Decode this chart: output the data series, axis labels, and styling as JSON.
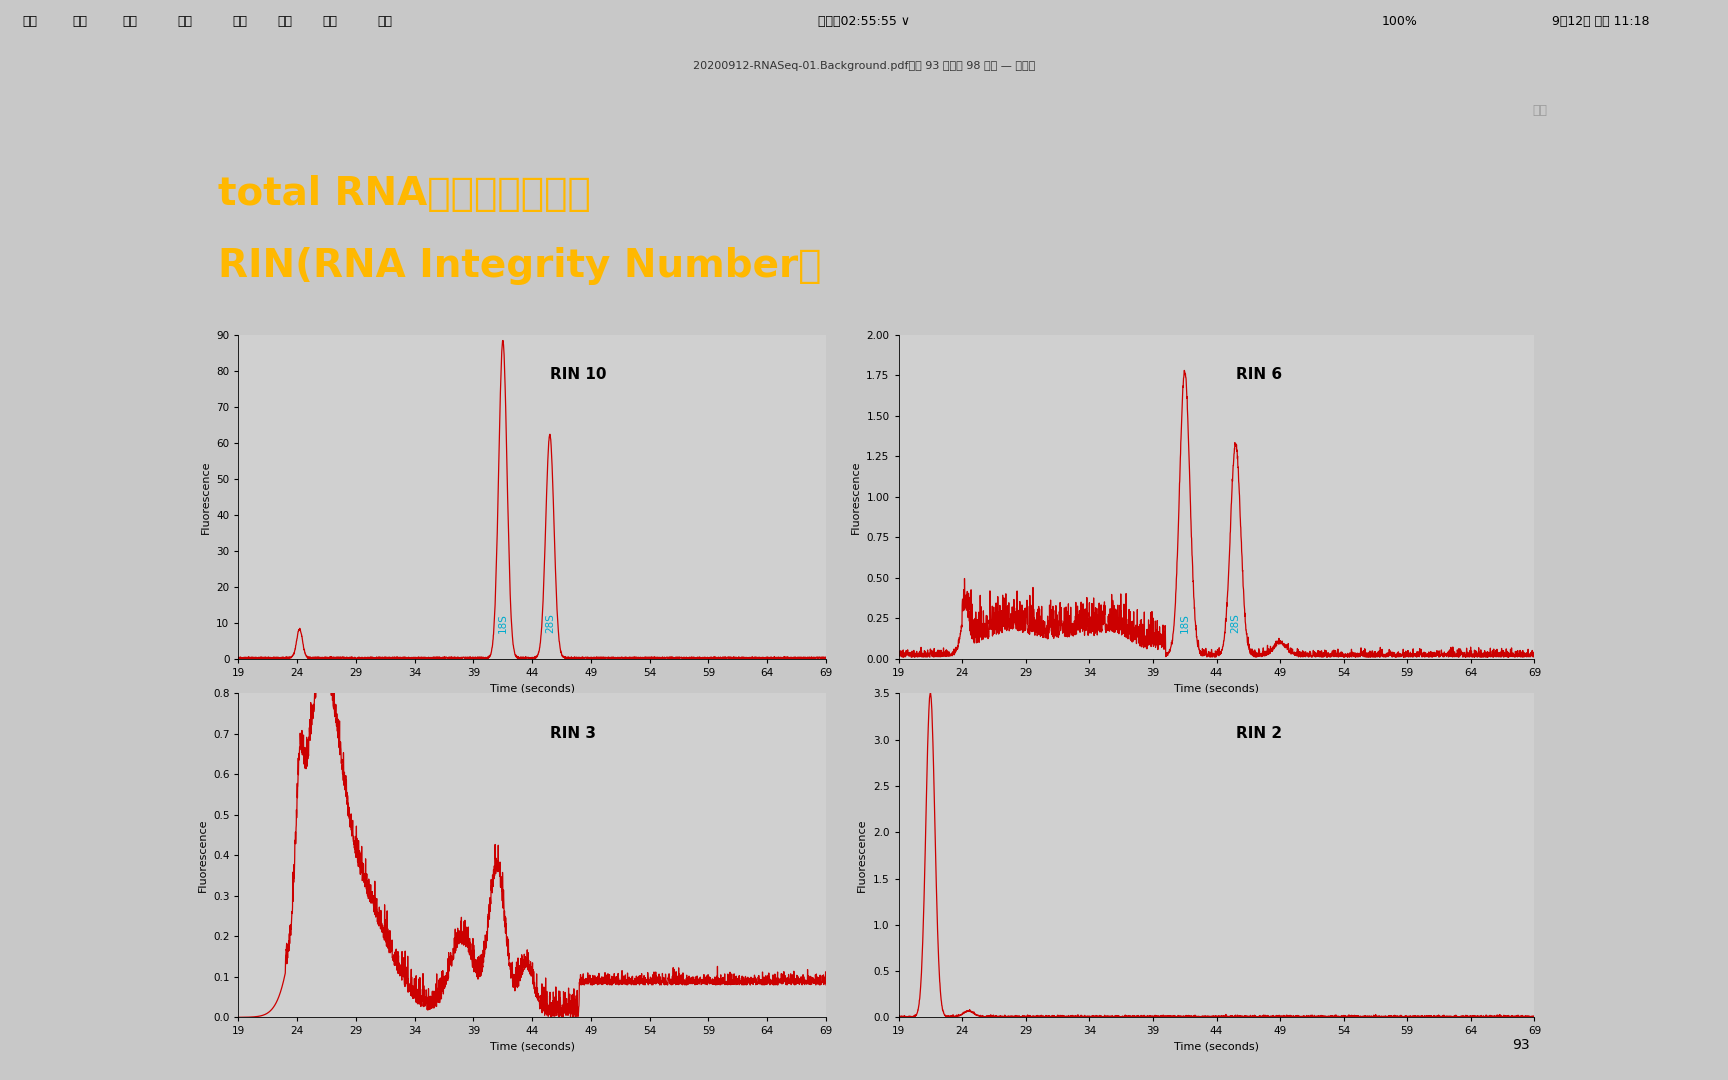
{
  "title_line1": "total RNA提取的质控标准",
  "title_line2": "RIN(RNA Integrity Number）",
  "title_bg": "#000000",
  "title_color": "#FFB800",
  "plot_bg": "#D0D0D0",
  "outer_bg": "#C8C8C8",
  "content_bg": "#FFFFFF",
  "line_color": "#CC0000",
  "label_18S_color": "#00AACC",
  "label_28S_color": "#00AACC",
  "toolbar_bg": "#EBEBEB",
  "subplots": [
    {
      "label": "RIN 10",
      "ylabel": "Fluorescence",
      "xlabel": "Time (seconds)",
      "xlim": [
        19,
        69
      ],
      "xticks": [
        19,
        24,
        29,
        34,
        39,
        44,
        49,
        54,
        59,
        64,
        69
      ],
      "ylim": [
        0,
        90
      ],
      "yticks": [
        0,
        10,
        20,
        30,
        40,
        50,
        60,
        70,
        80,
        90
      ],
      "has_18s_28s": true,
      "peak18s_x": 41.5,
      "peak28s_x": 45.5
    },
    {
      "label": "RIN 6",
      "ylabel": "Fluorescence",
      "xlabel": "Time (seconds)",
      "xlim": [
        19,
        69
      ],
      "xticks": [
        19,
        24,
        29,
        34,
        39,
        44,
        49,
        54,
        59,
        64,
        69
      ],
      "ylim": [
        0.0,
        2.0
      ],
      "yticks": [
        0.0,
        0.25,
        0.5,
        0.75,
        1.0,
        1.25,
        1.5,
        1.75,
        2.0
      ],
      "has_18s_28s": true,
      "peak18s_x": 41.5,
      "peak28s_x": 45.5
    },
    {
      "label": "RIN 3",
      "ylabel": "Fluorescence",
      "xlabel": "Time (seconds)",
      "xlim": [
        19,
        69
      ],
      "xticks": [
        19,
        24,
        29,
        34,
        39,
        44,
        49,
        54,
        59,
        64,
        69
      ],
      "ylim": [
        0.0,
        0.8
      ],
      "yticks": [
        0.0,
        0.1,
        0.2,
        0.3,
        0.4,
        0.5,
        0.6,
        0.7,
        0.8
      ],
      "has_18s_28s": false
    },
    {
      "label": "RIN 2",
      "ylabel": "Fluorescence",
      "xlabel": "Time (seconds)",
      "xlim": [
        19,
        69
      ],
      "xticks": [
        19,
        24,
        29,
        34,
        39,
        44,
        49,
        54,
        59,
        64,
        69
      ],
      "ylim": [
        0.0,
        3.5
      ],
      "yticks": [
        0.0,
        0.5,
        1.0,
        1.5,
        2.0,
        2.5,
        3.0,
        3.5
      ],
      "has_18s_28s": false
    }
  ]
}
